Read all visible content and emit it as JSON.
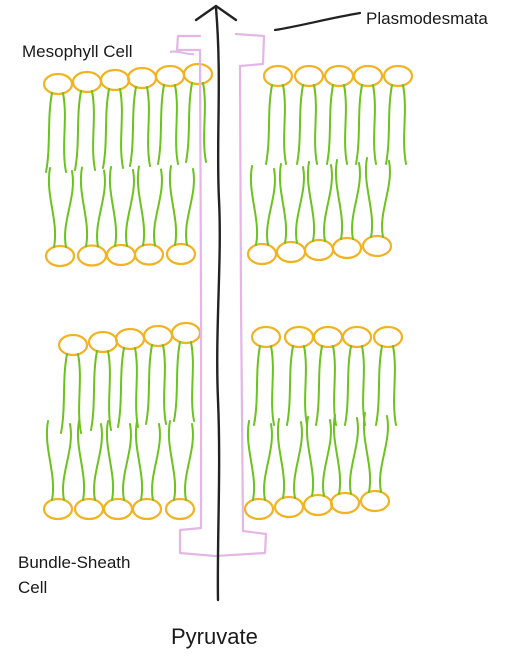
{
  "labels": {
    "plasmodesmata": "Plasmodesmata",
    "mesophyll_cell": "Mesophyll Cell",
    "bundle_sheath_line1": "Bundle-Sheath",
    "bundle_sheath_line2": "Cell",
    "pyruvate": "Pyruvate"
  },
  "colors": {
    "phospholipid_head": "#f2b323",
    "phospholipid_tail": "#6cc21e",
    "plasmodesma_channel": "#e3b6e6",
    "arrow": "#222222",
    "text": "#1a1a1a"
  }
}
